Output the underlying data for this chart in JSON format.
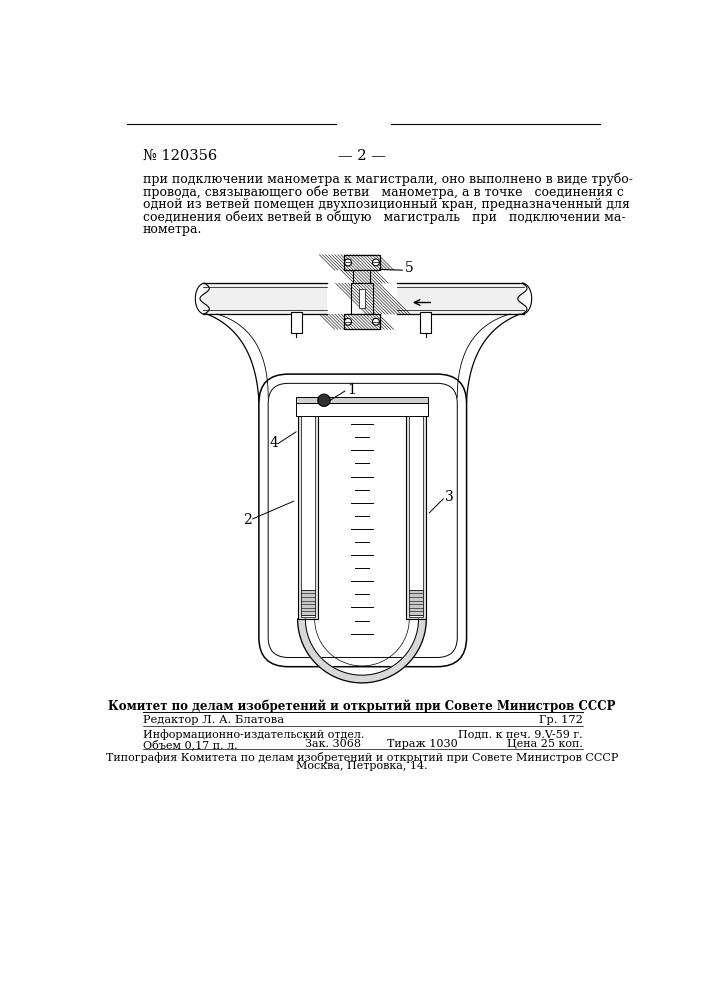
{
  "bg_color": "#ffffff",
  "page_number_text": "№ 120356",
  "page_center_text": "— 2 —",
  "body_text_lines": [
    "при подключении манометра к магистрали, оно выполнено в виде трубо-",
    "провода, связывающего обе ветви   манометра, а в точке   соединения с",
    "одной из ветвей помещен двухпозиционный кран, предназначенный для",
    "соединения обеих ветвей в общую   магистраль   при   подключении ма-",
    "нометра."
  ],
  "footer_bold": "Комитет по делам изобретений и открытий при Совете Министров СССР",
  "footer_line1_left": "Редактор Л. А. Блатова",
  "footer_line1_right": "Гр. 172",
  "footer_line2_left": "Информационно-издательский отдел.",
  "footer_line2_right": "Подп. к печ. 9.V-59 г.",
  "footer_line3_left": "Объем 0,17 п. л.",
  "footer_line3_center": "Зак. 3068",
  "footer_line3_center2": "Тираж 1030",
  "footer_line3_right": "Цена 25 коп.",
  "footer_line4": "Типография Комитета по делам изобретений и открытий при Совете Министров СССР",
  "footer_line5": "Москва, Петровка, 14."
}
